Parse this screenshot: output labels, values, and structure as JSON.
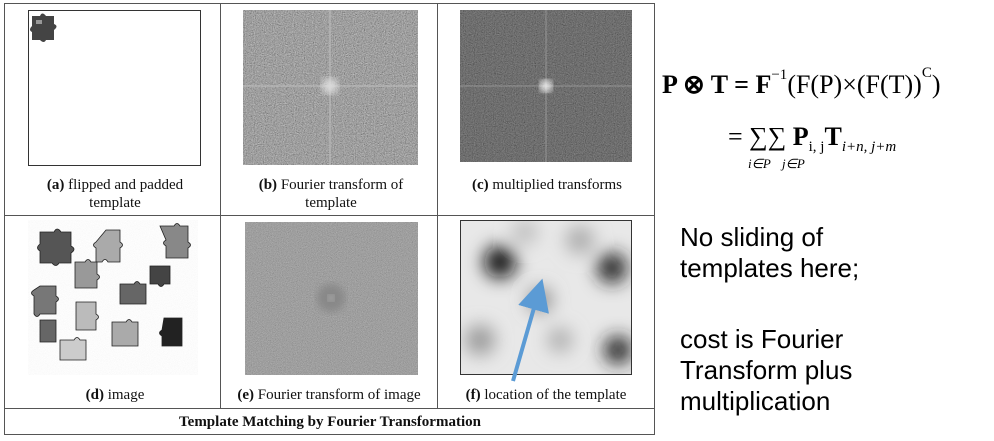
{
  "figure": {
    "panels": [
      {
        "label": "(a)",
        "caption": "flipped and padded template"
      },
      {
        "label": "(b)",
        "caption": "Fourier transform of template"
      },
      {
        "label": "(c)",
        "caption": "multiplied transforms"
      },
      {
        "label": "(d)",
        "caption": "image"
      },
      {
        "label": "(e)",
        "caption": "Fourier transform of image"
      },
      {
        "label": "(f)",
        "caption": "location of the template"
      }
    ],
    "title": "Template Matching by Fourier Transformation"
  },
  "equation": {
    "line1": {
      "lhs": "P ⊗ T = F",
      "inverse": "−1",
      "middle": "(F(P)×(F(T))",
      "conj": "C",
      "end": ")"
    },
    "line2": {
      "start": "= ∑∑ ",
      "p": "P",
      "p_sub": "i, j",
      "t": "T",
      "t_sub": "i+n, j+m",
      "sum1": "i∈P",
      "sum2": "j∈P"
    }
  },
  "notes": [
    "No sliding of templates here;",
    "cost is Fourier Transform plus multiplication"
  ]
}
